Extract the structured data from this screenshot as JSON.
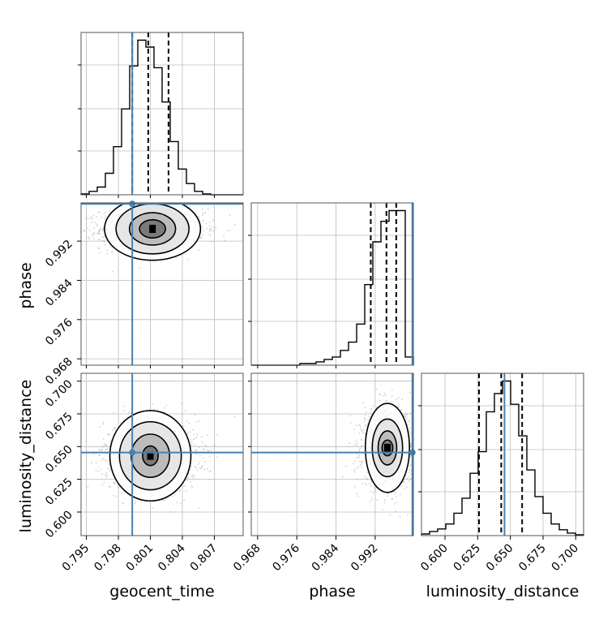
{
  "chart_data": {
    "type": "corner",
    "parameters": [
      "geocent_time",
      "phase",
      "luminosity_distance"
    ],
    "truths": {
      "geocent_time": 0.7993,
      "phase": 0.9996,
      "luminosity_distance": 0.6455
    },
    "axes": {
      "geocent_time": {
        "label": "geocent_time",
        "range": [
          0.7945,
          0.8097
        ],
        "ticks": [
          0.795,
          0.798,
          0.801,
          0.804,
          0.807
        ],
        "tick_labels": [
          "0.795",
          "0.798",
          "0.801",
          "0.804",
          "0.807"
        ]
      },
      "phase": {
        "label": "phase",
        "range": [
          0.9667,
          0.9998
        ],
        "ticks": [
          0.968,
          0.976,
          0.984,
          0.992
        ],
        "tick_labels": [
          "0.968",
          "0.976",
          "0.984",
          "0.992"
        ]
      },
      "luminosity_distance": {
        "label": "luminosity_distance",
        "range": [
          0.582,
          0.706
        ],
        "ticks": [
          0.6,
          0.625,
          0.65,
          0.675,
          0.7
        ],
        "tick_labels": [
          "0.600",
          "0.625",
          "0.650",
          "0.675",
          "0.700"
        ]
      }
    },
    "marginals": [
      {
        "parameter": "geocent_time",
        "quantiles": [
          0.7993,
          0.8008,
          0.8027
        ],
        "bin_edges": [
          0.7945,
          0.79526,
          0.79602,
          0.79678,
          0.79754,
          0.7983,
          0.79906,
          0.79982,
          0.80058,
          0.80134,
          0.8021,
          0.80286,
          0.80362,
          0.80438,
          0.80514,
          0.8059,
          0.80666,
          0.80742,
          0.80818,
          0.80894,
          0.8097
        ],
        "counts": [
          1,
          4,
          9,
          25,
          56,
          100,
          150,
          180,
          172,
          148,
          108,
          62,
          30,
          13,
          4,
          1,
          0,
          0,
          0,
          0
        ]
      },
      {
        "parameter": "phase",
        "quantiles": [
          0.9911,
          0.9943,
          0.9963
        ],
        "bin_edges": [
          0.9667,
          0.96836,
          0.97001,
          0.97167,
          0.97332,
          0.97497,
          0.97663,
          0.97828,
          0.97994,
          0.98159,
          0.98325,
          0.9849,
          0.98656,
          0.98821,
          0.98987,
          0.99152,
          0.99318,
          0.99483,
          0.99649,
          0.99814,
          0.9998
        ],
        "counts": [
          0,
          0,
          0,
          0,
          0,
          0,
          2,
          2,
          4,
          7,
          10,
          18,
          28,
          50,
          98,
          150,
          175,
          188,
          188,
          10
        ]
      },
      {
        "parameter": "luminosity_distance",
        "quantiles": [
          0.626,
          0.643,
          0.659
        ],
        "bin_edges": [
          0.582,
          0.5882,
          0.5944,
          0.6006,
          0.6068,
          0.613,
          0.6192,
          0.6254,
          0.6316,
          0.6378,
          0.644,
          0.6502,
          0.6564,
          0.6626,
          0.6688,
          0.675,
          0.6812,
          0.6874,
          0.6936,
          0.6998,
          0.706
        ],
        "counts": [
          2,
          5,
          8,
          14,
          27,
          45,
          75,
          101,
          149,
          171,
          186,
          158,
          120,
          79,
          47,
          27,
          14,
          7,
          3,
          1
        ]
      }
    ],
    "joint": [
      {
        "x": "geocent_time",
        "y": "phase",
        "center": [
          0.8012,
          0.9945
        ],
        "sigma": [
          0.0021,
          0.0018
        ],
        "contours": [
          {
            "level": 1,
            "semi_axes": [
              0.00122,
              0.00185
            ]
          },
          {
            "level": 2,
            "semi_axes": [
              0.00216,
              0.0033
            ]
          },
          {
            "level": 3,
            "semi_axes": [
              0.00342,
              0.0051
            ]
          },
          {
            "level": 4,
            "semi_axes": [
              0.0045,
              0.0064
            ]
          }
        ]
      },
      {
        "x": "geocent_time",
        "y": "luminosity_distance",
        "center": [
          0.801,
          0.643
        ],
        "sigma": [
          0.0019,
          0.012
        ],
        "contours": [
          {
            "level": 1,
            "semi_axes": [
              0.00073,
              0.0075
            ]
          },
          {
            "level": 2,
            "semi_axes": [
              0.0018,
              0.0165
            ]
          },
          {
            "level": 3,
            "semi_axes": [
              0.0029,
              0.026
            ]
          },
          {
            "level": 4,
            "semi_axes": [
              0.0038,
              0.0345
            ]
          }
        ]
      },
      {
        "x": "phase",
        "y": "luminosity_distance",
        "center": [
          0.9945,
          0.649
        ],
        "sigma": [
          0.0022,
          0.013
        ],
        "contours": [
          {
            "level": 1,
            "semi_axes": [
              0.0011,
              0.006
            ]
          },
          {
            "level": 2,
            "semi_axes": [
              0.0019,
              0.013
            ]
          },
          {
            "level": 3,
            "semi_axes": [
              0.0031,
              0.022
            ]
          },
          {
            "level": 4,
            "semi_axes": [
              0.0045,
              0.034
            ]
          }
        ]
      }
    ],
    "grid": true,
    "colors": {
      "truth": "#4682b4",
      "histogram": "#000000",
      "points": "#9a9a9a",
      "grid": "#bbbbbb"
    }
  }
}
